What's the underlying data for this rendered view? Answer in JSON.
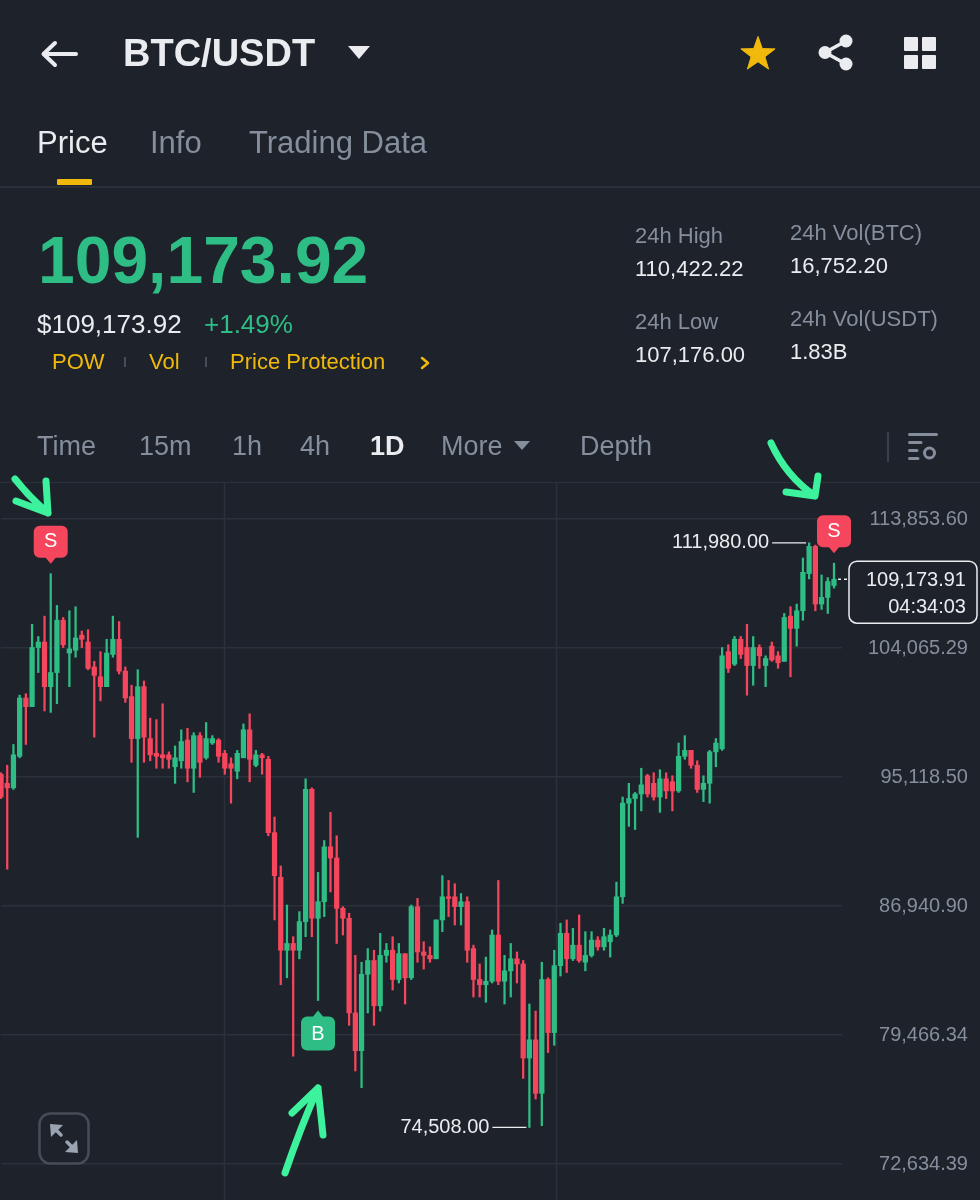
{
  "chart_data": {
    "type": "candlestick",
    "title": "BTC/USDT",
    "subtitle": "109,173.92",
    "annotations": [
      "Price",
      "Info",
      "Trading Data",
      "$109,173.92",
      "+1.49%",
      "POW",
      "Vol",
      "Price Protection",
      "24h High",
      "110,422.22",
      "24h Vol(BTC)",
      "16,752.20",
      "24h Low",
      "107,176.00",
      "24h Vol(USDT)",
      "1.83B",
      "Time",
      "15m",
      "1h",
      "4h",
      "1D",
      "More",
      "Depth",
      {
        "text": "S",
        "y": 109600
      },
      {
        "text": "B",
        "y": 81400
      },
      {
        "text": "S",
        "y": 110400
      },
      "111,980.00",
      "74,508.00",
      "109,173.91",
      "04:34:03"
    ],
    "categories": [
      null,
      null,
      null,
      null,
      null,
      null,
      null,
      null,
      null,
      null,
      null,
      null,
      null,
      null,
      null,
      null,
      null,
      null,
      null,
      null,
      null,
      null,
      null,
      null,
      null,
      null,
      null,
      null,
      null,
      null,
      null,
      null,
      null,
      null,
      null,
      null,
      null,
      null,
      null,
      null,
      null,
      null,
      null,
      null,
      null,
      null,
      null,
      null,
      null,
      null,
      null,
      null,
      null,
      null,
      null,
      null,
      null,
      null,
      null,
      null,
      null,
      null,
      null,
      null,
      null,
      null,
      null,
      null,
      null,
      null,
      null,
      null,
      null,
      null,
      null,
      null,
      null,
      null,
      null,
      null,
      null,
      null,
      null,
      null,
      null,
      null,
      null,
      null,
      null,
      null,
      null,
      null,
      null,
      null,
      null,
      null,
      null,
      null,
      null,
      null,
      null,
      null,
      null,
      null,
      null,
      null,
      null,
      null,
      null,
      null,
      null,
      null,
      null,
      null,
      null,
      null,
      null,
      null,
      null,
      null,
      null,
      null,
      null,
      null,
      null,
      null,
      null,
      null,
      null,
      null,
      null,
      null,
      null,
      null,
      null
    ],
    "ohlc": [
      [
        95300,
        95400,
        93700,
        93800
      ],
      [
        94700,
        95900,
        89200,
        94400
      ],
      [
        94400,
        97300,
        94300,
        96600
      ],
      [
        96500,
        100700,
        96400,
        100500
      ],
      [
        100500,
        100800,
        97300,
        99900
      ],
      [
        99900,
        105800,
        99900,
        104100
      ],
      [
        104100,
        104900,
        102300,
        104500
      ],
      [
        104500,
        106400,
        99600,
        101300
      ],
      [
        101300,
        109600,
        99500,
        102300
      ],
      [
        102300,
        107200,
        100100,
        106100
      ],
      [
        106100,
        106300,
        104100,
        104300
      ],
      [
        103700,
        106800,
        101300,
        104000
      ],
      [
        103900,
        107100,
        103400,
        104800
      ],
      [
        105000,
        105300,
        104100,
        104700
      ],
      [
        104500,
        105400,
        102500,
        102600
      ],
      [
        102700,
        103100,
        97800,
        102100
      ],
      [
        102000,
        103800,
        100300,
        101300
      ],
      [
        101300,
        104700,
        101300,
        103700
      ],
      [
        103600,
        106400,
        103400,
        104700
      ],
      [
        104700,
        106000,
        102200,
        102400
      ],
      [
        102400,
        102700,
        100200,
        100500
      ],
      [
        100600,
        101400,
        96100,
        97700
      ],
      [
        97700,
        102500,
        91200,
        101300
      ],
      [
        101300,
        101700,
        96100,
        97800
      ],
      [
        97700,
        99100,
        96200,
        96600
      ],
      [
        96700,
        99000,
        95700,
        96500
      ],
      [
        96600,
        100100,
        95700,
        96400
      ],
      [
        96600,
        96800,
        95700,
        96300
      ],
      [
        95800,
        97200,
        94700,
        96400
      ],
      [
        96200,
        98300,
        95700,
        97500
      ],
      [
        97600,
        98400,
        94800,
        95700
      ],
      [
        95700,
        98100,
        94100,
        97900
      ],
      [
        97900,
        98100,
        95100,
        96100
      ],
      [
        96400,
        98800,
        96300,
        97700
      ],
      [
        97400,
        97900,
        97300,
        97700
      ],
      [
        97600,
        97700,
        96100,
        96500
      ],
      [
        96700,
        96900,
        95300,
        95700
      ],
      [
        96000,
        96400,
        93400,
        95700
      ],
      [
        95500,
        96900,
        95000,
        96700
      ],
      [
        96400,
        98700,
        96400,
        98300
      ],
      [
        98300,
        99400,
        94800,
        96300
      ],
      [
        95900,
        96900,
        95800,
        96600
      ],
      [
        96600,
        96700,
        95300,
        96400
      ],
      [
        96300,
        96500,
        91300,
        91500
      ],
      [
        91500,
        92500,
        86100,
        88800
      ],
      [
        88700,
        89400,
        82300,
        84300
      ],
      [
        84300,
        87000,
        82700,
        84700
      ],
      [
        84700,
        85100,
        78300,
        84300
      ],
      [
        84300,
        86600,
        83800,
        86000
      ],
      [
        86000,
        95000,
        85100,
        94300
      ],
      [
        94300,
        94400,
        85100,
        86200
      ],
      [
        86200,
        89000,
        81400,
        87200
      ],
      [
        87200,
        91000,
        86300,
        90600
      ],
      [
        90600,
        92800,
        87800,
        89900
      ],
      [
        89900,
        91300,
        84700,
        86800
      ],
      [
        86800,
        86900,
        85200,
        86200
      ],
      [
        86200,
        86500,
        80000,
        80700
      ],
      [
        80700,
        84000,
        77500,
        78600
      ],
      [
        78600,
        83600,
        76600,
        82900
      ],
      [
        82900,
        84400,
        80700,
        83700
      ],
      [
        83700,
        84300,
        80000,
        81100
      ],
      [
        81100,
        85300,
        80800,
        84000
      ],
      [
        84000,
        84700,
        83600,
        84300
      ],
      [
        84300,
        85100,
        82000,
        82600
      ],
      [
        82600,
        84700,
        82400,
        84100
      ],
      [
        84100,
        84100,
        81200,
        82700
      ],
      [
        82700,
        87000,
        82600,
        86900
      ],
      [
        86900,
        87400,
        83600,
        84200
      ],
      [
        84200,
        84800,
        83200,
        84000
      ],
      [
        84000,
        84500,
        83600,
        83800
      ],
      [
        83800,
        86100,
        83800,
        86100
      ],
      [
        86100,
        88800,
        85400,
        87500
      ],
      [
        87500,
        88500,
        86300,
        87400
      ],
      [
        87500,
        88300,
        85800,
        86900
      ],
      [
        86900,
        87700,
        85800,
        87200
      ],
      [
        87200,
        87500,
        83600,
        84300
      ],
      [
        84400,
        84600,
        81600,
        82600
      ],
      [
        82600,
        83500,
        81600,
        82300
      ],
      [
        82300,
        83900,
        81300,
        82500
      ],
      [
        82500,
        85500,
        82400,
        85200
      ],
      [
        85200,
        88500,
        82300,
        82500
      ],
      [
        82500,
        84000,
        81200,
        83100
      ],
      [
        83100,
        84700,
        81600,
        83800
      ],
      [
        83800,
        84200,
        82400,
        83500
      ],
      [
        83500,
        83700,
        77100,
        78200
      ],
      [
        78200,
        81200,
        74508,
        79200
      ],
      [
        79200,
        80800,
        76000,
        76300
      ],
      [
        76300,
        83600,
        74600,
        82600
      ],
      [
        82600,
        82700,
        78500,
        79600
      ],
      [
        79600,
        84300,
        78900,
        83400
      ],
      [
        83400,
        85900,
        82800,
        85300
      ],
      [
        85300,
        86100,
        83000,
        83800
      ],
      [
        83800,
        85600,
        83700,
        84600
      ],
      [
        84600,
        86400,
        83600,
        83700
      ],
      [
        83600,
        85400,
        83100,
        84000
      ],
      [
        84000,
        85400,
        83900,
        84900
      ],
      [
        84900,
        85100,
        84300,
        84500
      ],
      [
        84500,
        85600,
        84300,
        85100
      ],
      [
        84800,
        85500,
        83900,
        85200
      ],
      [
        85200,
        88400,
        85100,
        87500
      ],
      [
        87500,
        93800,
        87100,
        93400
      ],
      [
        93400,
        94700,
        91900,
        93700
      ],
      [
        93700,
        94100,
        91700,
        94000
      ],
      [
        94000,
        95700,
        92900,
        94600
      ],
      [
        95200,
        95300,
        93800,
        94000
      ],
      [
        94700,
        95400,
        93600,
        93800
      ],
      [
        93800,
        95600,
        92800,
        95000
      ],
      [
        95000,
        95400,
        93700,
        94200
      ],
      [
        94800,
        95200,
        92900,
        94200
      ],
      [
        94200,
        97400,
        94100,
        96500
      ],
      [
        96500,
        97900,
        96300,
        96900
      ],
      [
        96900,
        96900,
        95700,
        95900
      ],
      [
        95900,
        96200,
        94100,
        94300
      ],
      [
        94300,
        95200,
        93500,
        94700
      ],
      [
        94700,
        96900,
        93400,
        96800
      ],
      [
        96800,
        97700,
        95800,
        97400
      ],
      [
        97000,
        104100,
        96900,
        103500
      ],
      [
        103800,
        104300,
        102300,
        102600
      ],
      [
        102900,
        104900,
        102800,
        104700
      ],
      [
        104700,
        104900,
        103300,
        103600
      ],
      [
        104100,
        105800,
        100700,
        102800
      ],
      [
        102800,
        104900,
        101400,
        104100
      ],
      [
        104100,
        104300,
        102600,
        103500
      ],
      [
        102800,
        103500,
        101300,
        103300
      ],
      [
        104200,
        104500,
        103100,
        103200
      ],
      [
        103500,
        103800,
        102600,
        103000
      ],
      [
        103100,
        106600,
        103100,
        106300
      ],
      [
        106400,
        107100,
        102000,
        105500
      ],
      [
        105500,
        107300,
        104200,
        106800
      ],
      [
        106800,
        110800,
        106100,
        109700
      ],
      [
        109600,
        111980,
        109200,
        111700
      ],
      [
        111700,
        111800,
        106800,
        107300
      ],
      [
        107300,
        109500,
        106900,
        107800
      ],
      [
        107800,
        109300,
        106600,
        109000
      ],
      [
        108700,
        110400,
        108500,
        109173.91
      ]
    ],
    "colors": [
      "#f6465d",
      "#f6465d",
      "#2ebd85",
      "#2ebd85",
      "#f6465d",
      "#2ebd85",
      "#2ebd85",
      "#f6465d",
      "#2ebd85",
      "#2ebd85",
      "#f6465d",
      "#2ebd85",
      "#2ebd85",
      "#f6465d",
      "#f6465d",
      "#f6465d",
      "#f6465d",
      "#2ebd85",
      "#2ebd85",
      "#f6465d",
      "#f6465d",
      "#f6465d",
      "#2ebd85",
      "#f6465d",
      "#f6465d",
      "#f6465d",
      "#f6465d",
      "#f6465d",
      "#2ebd85",
      "#2ebd85",
      "#f6465d",
      "#2ebd85",
      "#f6465d",
      "#2ebd85",
      "#2ebd85",
      "#f6465d",
      "#f6465d",
      "#f6465d",
      "#2ebd85",
      "#2ebd85",
      "#f6465d",
      "#2ebd85",
      "#f6465d",
      "#f6465d",
      "#f6465d",
      "#f6465d",
      "#2ebd85",
      "#f6465d",
      "#2ebd85",
      "#2ebd85",
      "#f6465d",
      "#2ebd85",
      "#2ebd85",
      "#f6465d",
      "#f6465d",
      "#f6465d",
      "#f6465d",
      "#f6465d",
      "#2ebd85",
      "#2ebd85",
      "#f6465d",
      "#2ebd85",
      "#2ebd85",
      "#f6465d",
      "#2ebd85",
      "#f6465d",
      "#2ebd85",
      "#f6465d",
      "#f6465d",
      "#f6465d",
      "#2ebd85",
      "#2ebd85",
      "#f6465d",
      "#f6465d",
      "#2ebd85",
      "#f6465d",
      "#f6465d",
      "#f6465d",
      "#2ebd85",
      "#2ebd85",
      "#f6465d",
      "#2ebd85",
      "#2ebd85",
      "#f6465d",
      "#f6465d",
      "#2ebd85",
      "#f6465d",
      "#2ebd85",
      "#f6465d",
      "#2ebd85",
      "#2ebd85",
      "#f6465d",
      "#2ebd85",
      "#f6465d",
      "#2ebd85",
      "#2ebd85",
      "#f6465d",
      "#2ebd85",
      "#2ebd85",
      "#2ebd85",
      "#2ebd85",
      "#2ebd85",
      "#2ebd85",
      "#2ebd85",
      "#f6465d",
      "#f6465d",
      "#2ebd85",
      "#f6465d",
      "#f6465d",
      "#2ebd85",
      "#2ebd85",
      "#f6465d",
      "#f6465d",
      "#2ebd85",
      "#2ebd85",
      "#2ebd85",
      "#2ebd85",
      "#f6465d",
      "#2ebd85",
      "#f6465d",
      "#f6465d",
      "#2ebd85",
      "#f6465d",
      "#2ebd85",
      "#f6465d",
      "#f6465d",
      "#2ebd85",
      "#f6465d",
      "#2ebd85",
      "#2ebd85",
      "#2ebd85",
      "#f6465d",
      "#2ebd85",
      "#2ebd85",
      "#2ebd85"
    ],
    "ylim": [
      72634.39,
      113853.6
    ],
    "yticks": [
      {
        "value": 72634.39,
        "label": "72,634.39"
      },
      {
        "value": 79466.34,
        "label": "79,466.34"
      },
      {
        "value": 86940.9,
        "label": "86,940.90"
      },
      {
        "value": 95118.5,
        "label": "95,118.50"
      },
      {
        "value": 104065.29,
        "label": "104,065.29"
      },
      {
        "value": 113853.6,
        "label": "113,853.60"
      }
    ],
    "log": true,
    "grid": "y",
    "tick_labels": "y"
  }
}
